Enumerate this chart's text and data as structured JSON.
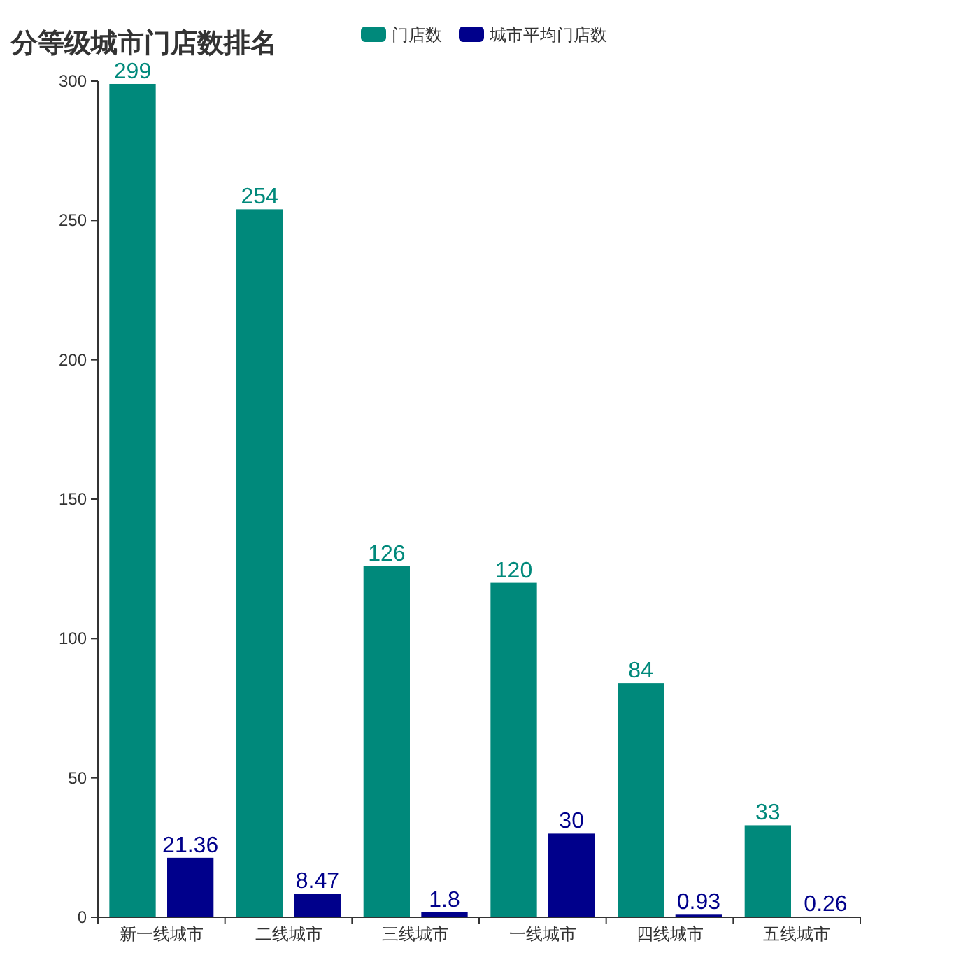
{
  "chart_data": {
    "type": "bar",
    "title": "分等级城市门店数排名",
    "categories": [
      "新一线城市",
      "二线城市",
      "三线城市",
      "一线城市",
      "四线城市",
      "五线城市"
    ],
    "series": [
      {
        "name": "门店数",
        "color": "#00897b",
        "values": [
          299,
          254,
          126,
          120,
          84,
          33
        ]
      },
      {
        "name": "城市平均门店数",
        "color": "#00008b",
        "values": [
          21.36,
          8.47,
          1.8,
          30,
          0.93,
          0.26
        ]
      }
    ],
    "ylim": [
      0,
      300
    ],
    "yticks": [
      0,
      50,
      100,
      150,
      200,
      250,
      300
    ],
    "data_labels": true,
    "legend": "top",
    "grid": false
  }
}
